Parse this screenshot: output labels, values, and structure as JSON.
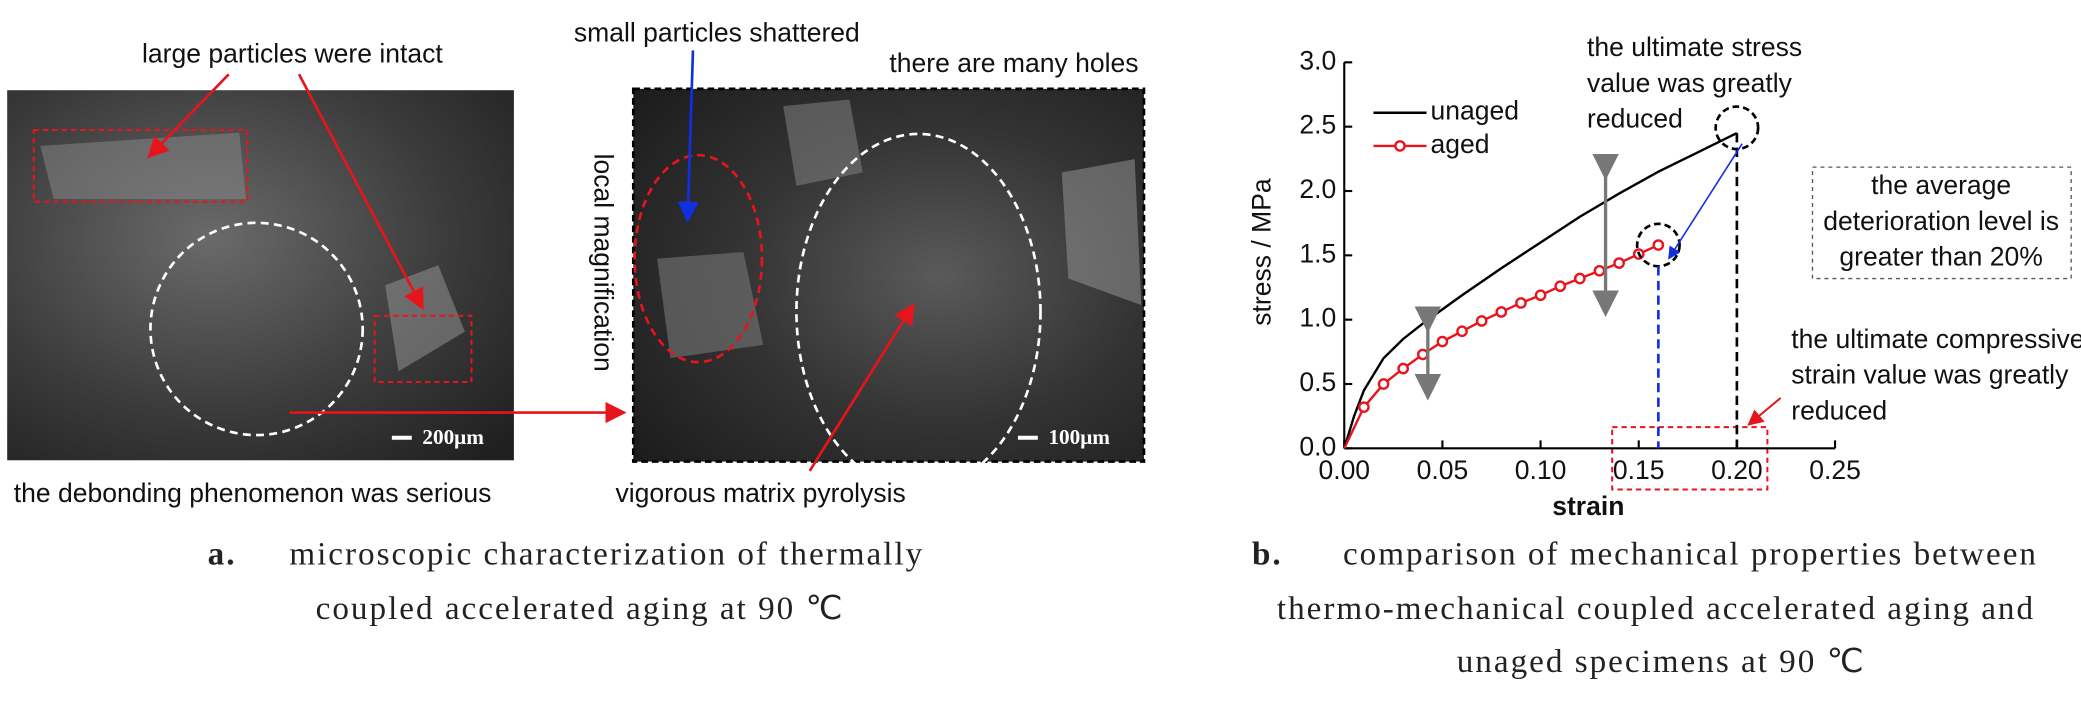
{
  "panel_a": {
    "annotations": {
      "large_particles": "large particles were intact",
      "small_particles": "small particles shattered",
      "holes": "there are many holes",
      "magnification": "local magnification",
      "debonding": "the debonding phenomenon was serious",
      "pyrolysis": "vigorous matrix pyrolysis"
    },
    "scale_bars": [
      "200μm",
      "100μm"
    ],
    "caption": {
      "label": "a.",
      "lines": [
        "microscopic characterization of thermally",
        "coupled accelerated aging at 90 ℃"
      ]
    }
  },
  "chart_data": {
    "type": "line",
    "x_label": "strain",
    "y_label": "stress / MPa",
    "xlim": [
      0,
      0.25
    ],
    "ylim": [
      0,
      3.0
    ],
    "xticks": [
      {
        "value": 0,
        "label": "0.00"
      },
      0.05,
      {
        "value": 0.1,
        "label": "0.10"
      },
      0.15,
      {
        "value": 0.2,
        "label": "0.20"
      },
      0.25
    ],
    "yticks": [
      {
        "value": 0,
        "label": "0.0"
      },
      0.5,
      {
        "value": 1,
        "label": "1.0"
      },
      1.5,
      {
        "value": 2,
        "label": "2.0"
      },
      2.5,
      {
        "value": 3,
        "label": "3.0"
      }
    ],
    "series": [
      {
        "name": "unaged",
        "color": "#000000",
        "marker": false,
        "x": [
          0,
          0.005,
          0.01,
          0.02,
          0.03,
          0.04,
          0.05,
          0.06,
          0.08,
          0.1,
          0.12,
          0.14,
          0.16,
          0.18,
          0.2
        ],
        "values": [
          0,
          0.25,
          0.45,
          0.7,
          0.85,
          0.97,
          1.08,
          1.19,
          1.4,
          1.6,
          1.8,
          1.98,
          2.15,
          2.3,
          2.45
        ]
      },
      {
        "name": "aged",
        "color": "#e8141c",
        "marker": true,
        "x": [
          0,
          0.01,
          0.02,
          0.03,
          0.04,
          0.05,
          0.06,
          0.07,
          0.08,
          0.09,
          0.1,
          0.11,
          0.12,
          0.13,
          0.14,
          0.15,
          0.16
        ],
        "values": [
          0,
          0.32,
          0.5,
          0.62,
          0.73,
          0.83,
          0.91,
          0.99,
          1.06,
          1.13,
          1.19,
          1.26,
          1.32,
          1.38,
          1.44,
          1.51,
          1.58
        ]
      }
    ],
    "annotations": {
      "stress": [
        "the ultimate stress",
        "value was greatly",
        "reduced"
      ],
      "deterioration": [
        "the average",
        "deterioration level is",
        "greater than 20%"
      ],
      "strain": [
        "the ultimate compressive",
        "strain value was greatly",
        "reduced"
      ]
    },
    "caption": {
      "label": "b.",
      "lines": [
        "comparison of mechanical properties between",
        "thermo-mechanical coupled accelerated aging and",
        "unaged specimens at 90 ℃"
      ]
    }
  }
}
